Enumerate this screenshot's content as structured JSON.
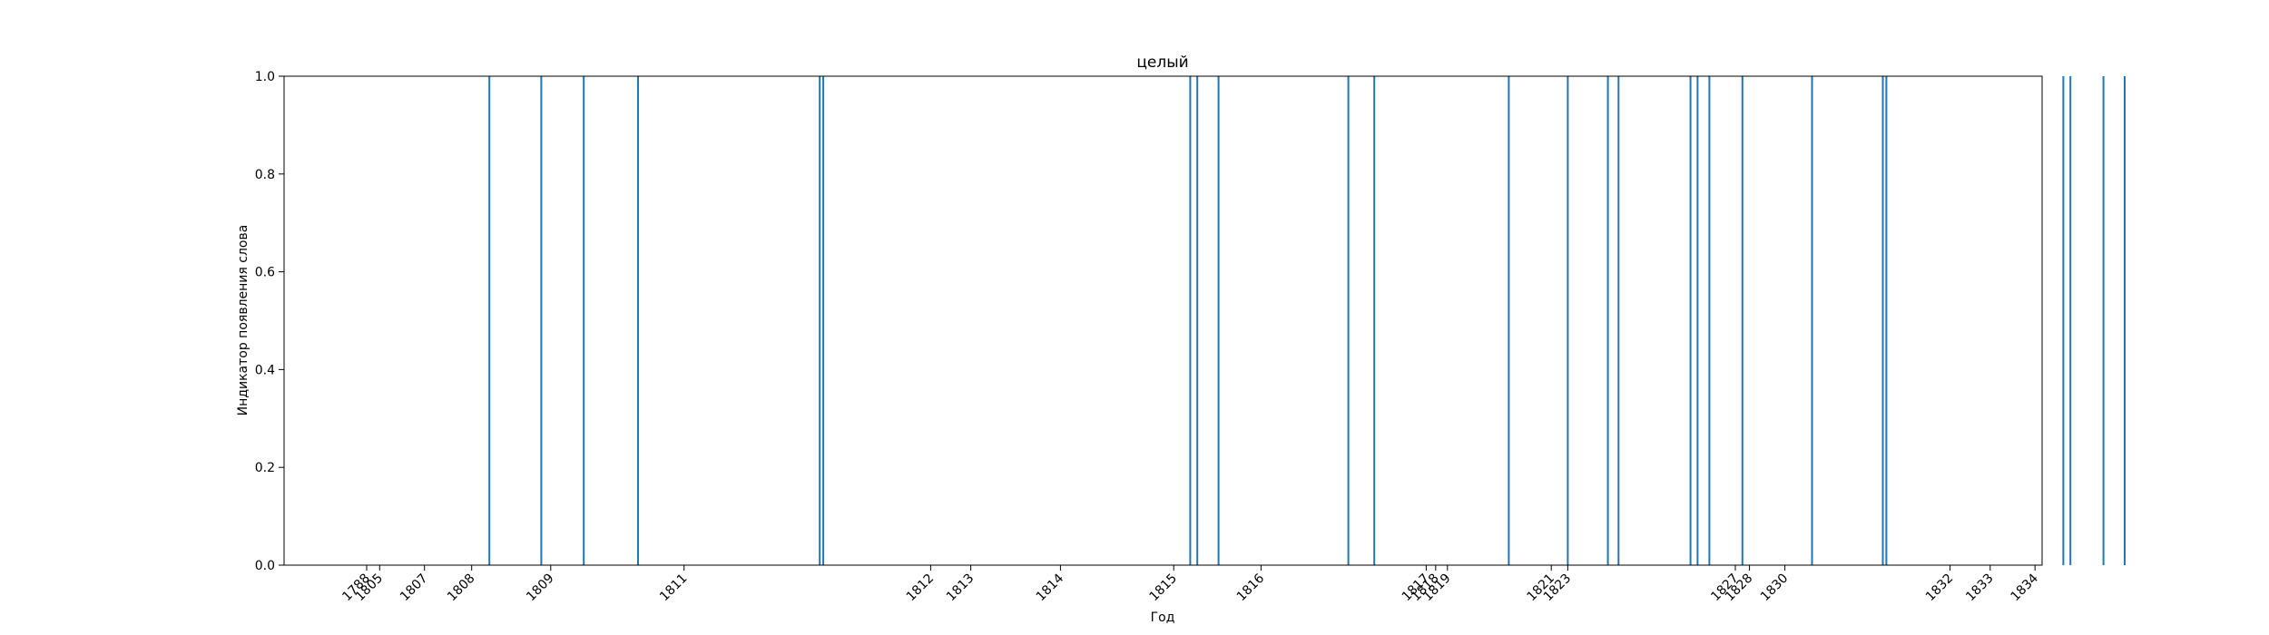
{
  "chart_data": {
    "type": "bar",
    "title": "целый",
    "xlabel": "Год",
    "ylabel": "Индикатор появления слова",
    "ylim": [
      0,
      1
    ],
    "y_ticks": [
      "0.0",
      "0.2",
      "0.4",
      "0.6",
      "0.8",
      "1.0"
    ],
    "x_ticks": [
      "1788",
      "1805",
      "1807",
      "1808",
      "1809",
      "1811",
      "1812",
      "1813",
      "1814",
      "1815",
      "1816",
      "1817",
      "1818",
      "1819",
      "1821",
      "1823",
      "1827",
      "1828",
      "1830",
      "1832",
      "1833",
      "1834"
    ],
    "x_tick_positions": [
      -4.0,
      -3.45,
      -1.55,
      0.45,
      3.8,
      9.45,
      19.9,
      21.6,
      25.4,
      30.2,
      33.9,
      40.9,
      41.3,
      41.8,
      46.2,
      46.9,
      54.0,
      54.6,
      56.1,
      63.1,
      64.8,
      66.7
    ],
    "event_positions": [
      1.2,
      3.4,
      5.2,
      7.5,
      15.2,
      15.35,
      30.9,
      31.2,
      32.1,
      37.6,
      38.7,
      44.4,
      46.9,
      48.6,
      49.05,
      52.1,
      52.4,
      52.9,
      54.3,
      57.25,
      60.25,
      60.4,
      67.9,
      68.2,
      69.6,
      70.5
    ],
    "event_value": 1,
    "x_range": [
      -7.5,
      67.0
    ],
    "grid": false,
    "bar_color": "#1f77b4"
  }
}
